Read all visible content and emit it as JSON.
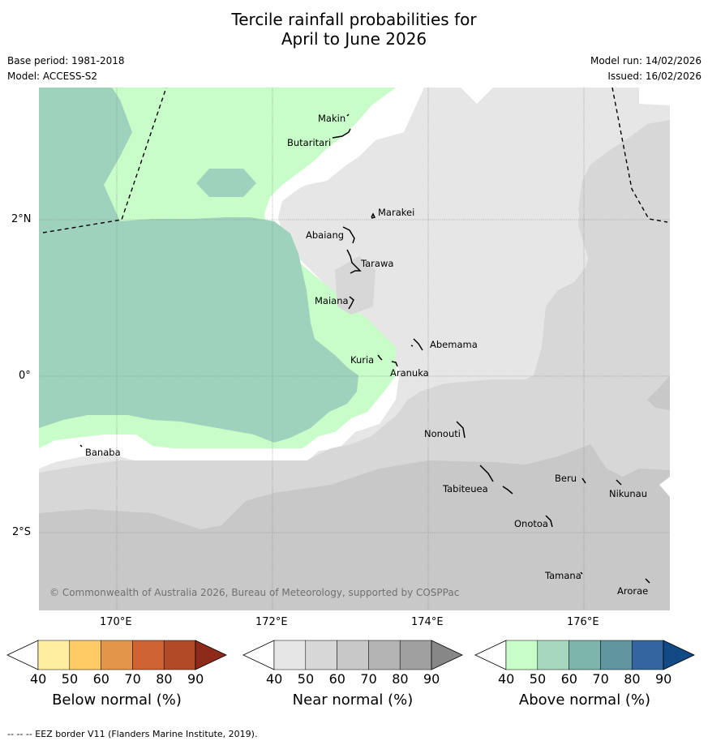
{
  "title": {
    "line1": "Tercile rainfall probabilities for",
    "line2": "April to June 2026"
  },
  "meta": {
    "base_period": "Base period: 1981-2018",
    "model": "Model: ACCESS-S2",
    "model_run": "Model run: 14/02/2026",
    "issued": "Issued: 16/02/2026"
  },
  "map": {
    "lat_labels": [
      "2°N",
      "0°",
      "2°S"
    ],
    "lon_labels": [
      "170°E",
      "172°E",
      "174°E",
      "176°E"
    ],
    "places": [
      "Makin",
      "Butaritari",
      "Marakei",
      "Abaiang",
      "Tarawa",
      "Maiana",
      "Abemama",
      "Kuria",
      "Aranuka",
      "Nonouti",
      "Banaba",
      "Tabiteuea",
      "Beru",
      "Nikunau",
      "Onotoa",
      "Tamana",
      "Arorae"
    ],
    "copyright": "© Commonwealth of Australia 2026, Bureau of Meteorology, supported by COSPPac",
    "colors": {
      "above_40_50": "#c8fcc8",
      "above_50_60": "#9ed2bd",
      "near_40_50": "#e6e6e6",
      "near_50_60": "#d7d7d7",
      "near_60_70": "#c8c8c8",
      "eez_line": "#000000"
    }
  },
  "colorbars": [
    {
      "label": "Below normal (%)",
      "ticks": [
        "40",
        "50",
        "60",
        "70",
        "80",
        "90"
      ],
      "colors": [
        "#ffffff",
        "#ffeda0",
        "#fecb65",
        "#e39549",
        "#cf6333",
        "#b24a27",
        "#8e2a1a"
      ]
    },
    {
      "label": "Near normal (%)",
      "ticks": [
        "40",
        "50",
        "60",
        "70",
        "80",
        "90"
      ],
      "colors": [
        "#ffffff",
        "#e6e6e6",
        "#d7d7d7",
        "#c8c8c8",
        "#b4b4b4",
        "#a0a0a0",
        "#878787"
      ]
    },
    {
      "label": "Above normal (%)",
      "ticks": [
        "40",
        "50",
        "60",
        "70",
        "80",
        "90"
      ],
      "colors": [
        "#ffffff",
        "#c8fcc8",
        "#a6d8c0",
        "#7db4ab",
        "#5f96a0",
        "#34659e",
        "#124a86"
      ]
    }
  ],
  "footer": "--  --  -- EEZ border V11 (Flanders Marine Institute, 2019)."
}
